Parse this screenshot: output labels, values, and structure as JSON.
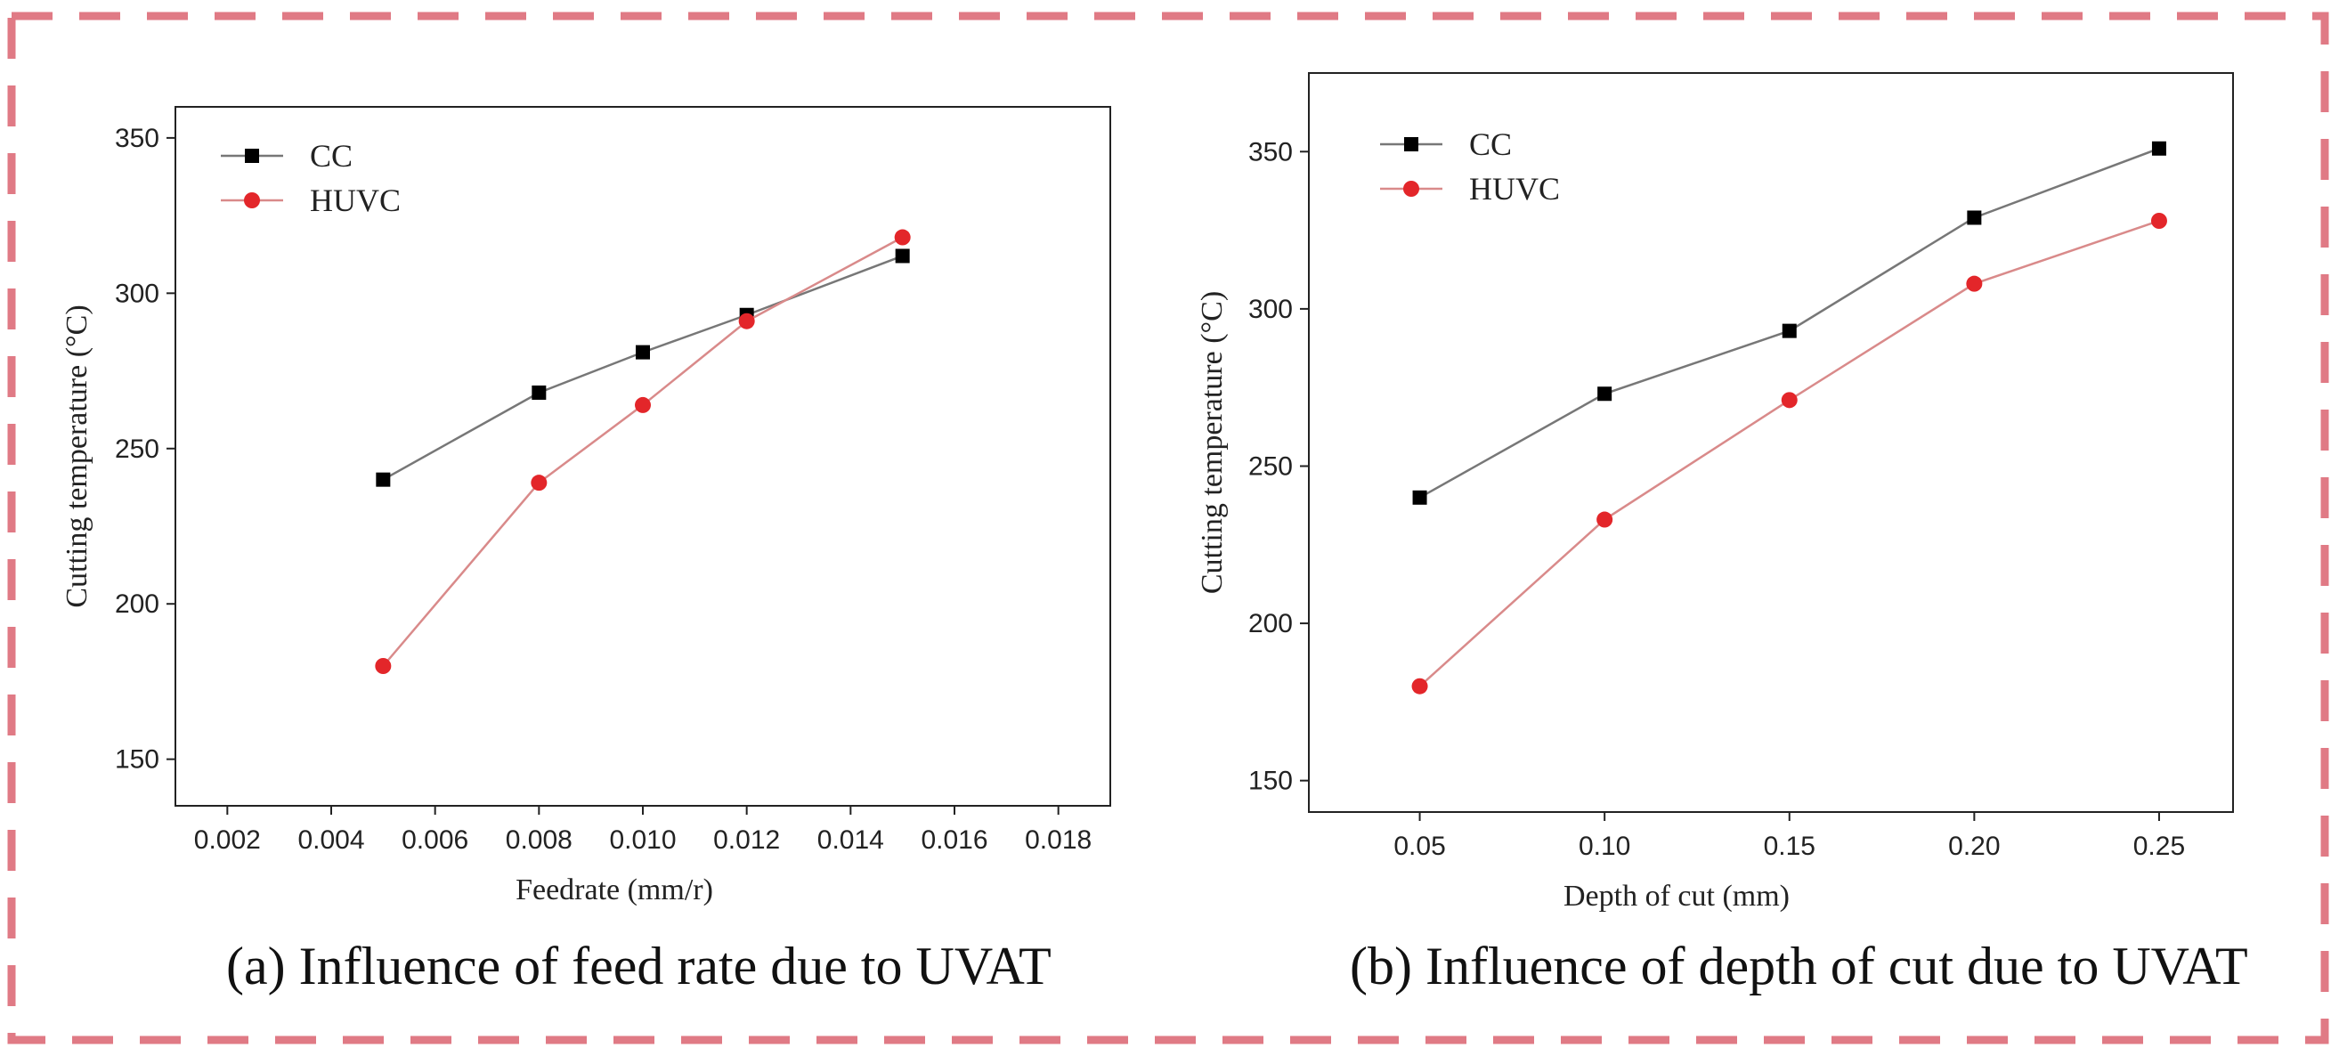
{
  "frame_color": "#e07a85",
  "colors": {
    "CC": "#000000",
    "HUVC": "#e3262a",
    "line_CC": "#777777",
    "line_HUVC": "#d98a8a"
  },
  "chart_data": [
    {
      "type": "line",
      "title": "",
      "xlabel": "Feedrate  (mm/r)",
      "ylabel": "Cutting temperature (°C)",
      "xlim": [
        0.001,
        0.019
      ],
      "ylim": [
        135,
        360
      ],
      "xticks": [
        0.002,
        0.004,
        0.006,
        0.008,
        0.01,
        0.012,
        0.014,
        0.016,
        0.018
      ],
      "xtick_labels": [
        "0.002",
        "0.004",
        "0.006",
        "0.008",
        "0.010",
        "0.012",
        "0.014",
        "0.016",
        "0.018"
      ],
      "yticks": [
        150,
        200,
        250,
        300,
        350
      ],
      "ytick_labels": [
        "150",
        "200",
        "250",
        "300",
        "350"
      ],
      "legend_position": "top-left",
      "x": [
        0.005,
        0.008,
        0.01,
        0.012,
        0.015
      ],
      "series": [
        {
          "name": "CC",
          "marker": "square",
          "values": [
            240,
            268,
            281,
            293,
            312
          ]
        },
        {
          "name": "HUVC",
          "marker": "circle",
          "values": [
            180,
            239,
            264,
            291,
            318
          ]
        }
      ]
    },
    {
      "type": "line",
      "title": "",
      "xlabel": "Depth of cut (mm)",
      "ylabel": "Cutting temperature (°C)",
      "xlim": [
        0.02,
        0.27
      ],
      "ylim": [
        140,
        375
      ],
      "xticks": [
        0.05,
        0.1,
        0.15,
        0.2,
        0.25
      ],
      "xtick_labels": [
        "0.05",
        "0.10",
        "0.15",
        "0.20",
        "0.25"
      ],
      "yticks": [
        150,
        200,
        250,
        300,
        350
      ],
      "ytick_labels": [
        "150",
        "200",
        "250",
        "300",
        "350"
      ],
      "legend_position": "top-left",
      "x": [
        0.05,
        0.1,
        0.15,
        0.2,
        0.25
      ],
      "series": [
        {
          "name": "CC",
          "marker": "square",
          "values": [
            240,
            273,
            293,
            329,
            351
          ]
        },
        {
          "name": "HUVC",
          "marker": "circle",
          "values": [
            180,
            233,
            271,
            308,
            328
          ]
        }
      ]
    }
  ],
  "captions": {
    "a": "(a) Influence of feed rate due to UVAT",
    "b": "(b) Influence of depth of cut due to UVAT"
  }
}
